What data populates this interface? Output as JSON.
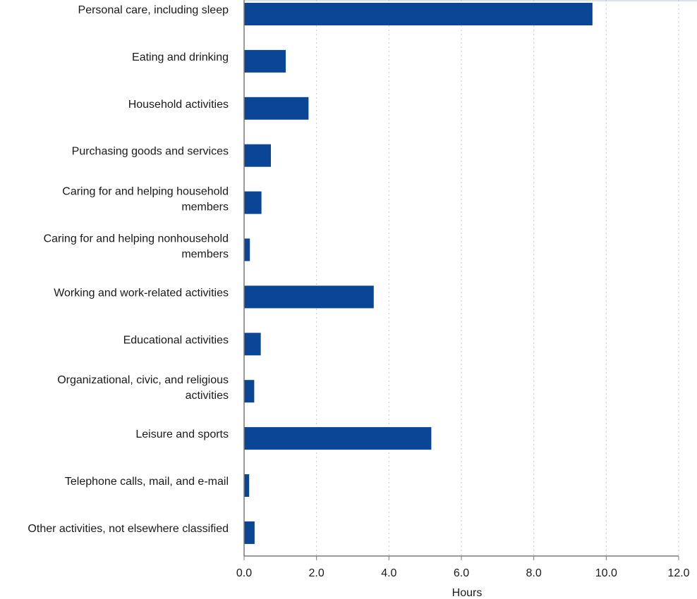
{
  "chart_data": {
    "type": "bar",
    "orientation": "horizontal",
    "categories": [
      "Personal care, including sleep",
      "Eating and drinking",
      "Household activities",
      "Purchasing goods and services",
      "Caring for and helping household members",
      "Caring for and helping nonhousehold members",
      "Working and work-related activities",
      "Educational activities",
      "Organizational, civic, and religious activities",
      "Leisure and sports",
      "Telephone calls, mail, and e-mail",
      "Other activities, not elsewhere classified"
    ],
    "category_lines": [
      [
        "Personal care, including sleep"
      ],
      [
        "Eating and drinking"
      ],
      [
        "Household activities"
      ],
      [
        "Purchasing goods and services"
      ],
      [
        "Caring for and helping household",
        "members"
      ],
      [
        "Caring for and helping nonhousehold",
        "members"
      ],
      [
        "Working and work-related activities"
      ],
      [
        "Educational activities"
      ],
      [
        "Organizational, civic, and religious",
        "activities"
      ],
      [
        "Leisure and sports"
      ],
      [
        "Telephone calls, mail, and e-mail"
      ],
      [
        "Other activities, not elsewhere classified"
      ]
    ],
    "values": [
      9.62,
      1.15,
      1.78,
      0.74,
      0.48,
      0.16,
      3.58,
      0.46,
      0.28,
      5.17,
      0.14,
      0.29
    ],
    "xlabel": "Hours",
    "ylabel": "",
    "title": "",
    "xlim": [
      0,
      12
    ],
    "xticks": [
      0,
      2,
      4,
      6,
      8,
      10,
      12
    ],
    "xtick_labels": [
      "0.0",
      "2.0",
      "4.0",
      "6.0",
      "8.0",
      "10.0",
      "12.0"
    ],
    "grid": "vertical dotted",
    "bar_color": "#0b4595"
  }
}
